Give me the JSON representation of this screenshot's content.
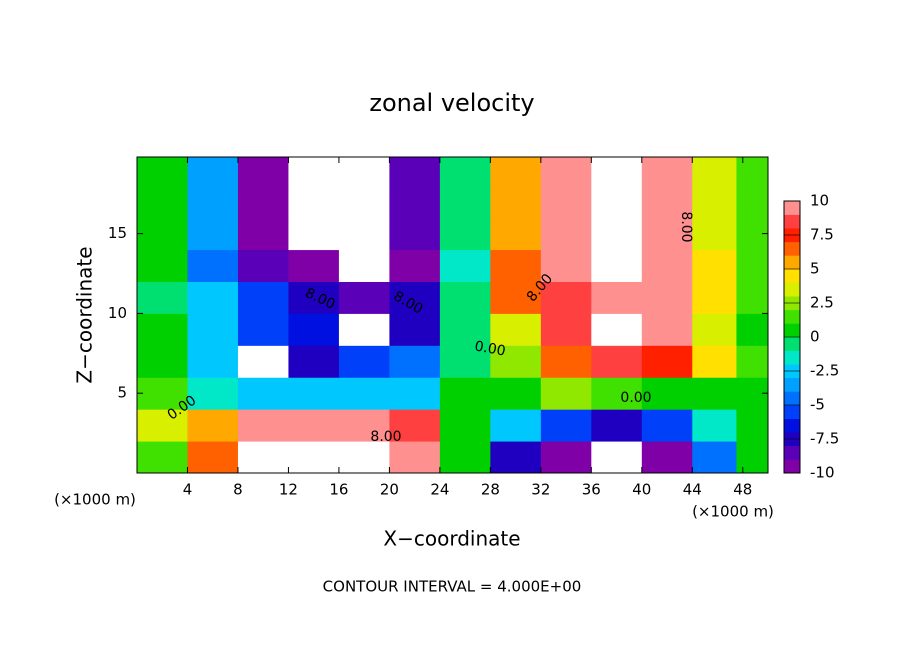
{
  "chart_data": {
    "type": "contour",
    "title": "zonal velocity",
    "xlabel": "X−coordinate",
    "ylabel": "Z−coordinate",
    "x_unit_label": "(×1000 m)",
    "y_unit_label": "(×1000 m)",
    "footer": "CONTOUR INTERVAL = 4.000E+00",
    "xlim": [
      0,
      50
    ],
    "ylim": [
      0,
      19.8
    ],
    "xticks": [
      4,
      8,
      12,
      16,
      20,
      24,
      28,
      32,
      36,
      40,
      44,
      48
    ],
    "yticks": [
      5,
      10,
      15
    ],
    "x": [
      2,
      6,
      10,
      14,
      18,
      22,
      26,
      30,
      34,
      38,
      42,
      46,
      49
    ],
    "y": [
      1,
      3,
      5,
      7,
      9,
      11,
      13,
      15,
      17,
      19
    ],
    "z": [
      [
        1,
        6,
        11,
        13,
        14,
        10,
        0,
        -8,
        -10,
        -12,
        -10,
        -5,
        0
      ],
      [
        3,
        5,
        9,
        10,
        10,
        8,
        0,
        -3,
        -6,
        -8,
        -6,
        -2,
        0
      ],
      [
        1,
        -2,
        -3,
        -3,
        -3,
        -3,
        0,
        0,
        2,
        1,
        0,
        0,
        0
      ],
      [
        0,
        -3,
        -11,
        -8,
        -6,
        -5,
        -1,
        2,
        6,
        8,
        7,
        4,
        1
      ],
      [
        0,
        -3,
        -6,
        -7,
        -11,
        -8,
        -1,
        3,
        8,
        12,
        9,
        3,
        0
      ],
      [
        -0.5,
        -3,
        -6,
        -8,
        -9,
        -8,
        -1,
        6,
        8,
        10,
        9,
        4,
        1
      ],
      [
        0,
        -5,
        -9,
        -10,
        -12,
        -10,
        -2,
        6,
        10,
        11,
        9,
        4,
        1
      ],
      [
        0,
        -4,
        -10,
        -13,
        -13,
        -9,
        -1,
        5,
        9,
        12,
        10,
        3,
        1
      ],
      [
        0,
        -4,
        -10,
        -13,
        -13,
        -9,
        -1,
        5,
        9,
        12,
        10,
        3,
        1
      ],
      [
        0,
        -4,
        -10,
        -13,
        -13,
        -9,
        -1,
        5,
        9,
        12,
        10,
        3,
        1
      ]
    ],
    "levels_min": -10,
    "levels_max": 10,
    "colors": [
      "#8000a8",
      "#5a00b8",
      "#2000c0",
      "#0010e0",
      "#0040f8",
      "#0070ff",
      "#00a0ff",
      "#00c8ff",
      "#00e8c8",
      "#00e070",
      "#00d000",
      "#40e000",
      "#90e800",
      "#d8f000",
      "#ffe000",
      "#ffa800",
      "#ff6000",
      "#ff2000",
      "#ff4040",
      "#ff9090"
    ],
    "out_of_range_color": "#ffffff",
    "colorbar_ticks": [
      10,
      7.5,
      5,
      2.5,
      0,
      -2.5,
      -5,
      -7.5,
      -10
    ],
    "contour_labels": [
      "8.00",
      "8.00",
      "8.00",
      "8.00",
      "8.00",
      "0.00",
      "0.00",
      "0.00"
    ]
  }
}
